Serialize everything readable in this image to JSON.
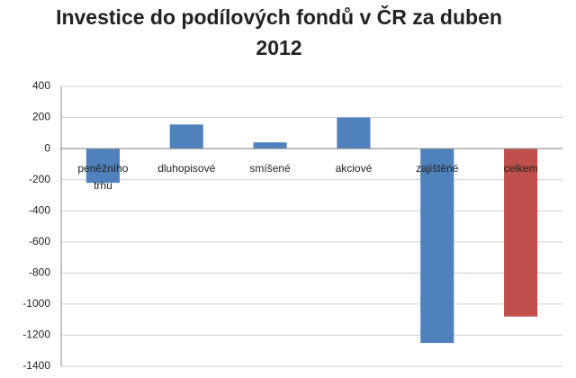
{
  "chart_data": {
    "type": "bar",
    "title": "Investice do podílových fondů v ČR za duben 2012",
    "categories": [
      "peněžního trhu",
      "dluhopisové",
      "smíšené",
      "akciové",
      "zajištěné",
      "celkem"
    ],
    "values": [
      -220,
      155,
      40,
      200,
      -1250,
      -1080
    ],
    "colors": [
      "#4f81bd",
      "#4f81bd",
      "#4f81bd",
      "#4f81bd",
      "#4f81bd",
      "#c0504d"
    ],
    "ylim": [
      -1400,
      400
    ],
    "yticks": [
      -1400,
      -1200,
      -1000,
      -800,
      -600,
      -400,
      -200,
      0,
      200,
      400
    ],
    "grid": true
  }
}
